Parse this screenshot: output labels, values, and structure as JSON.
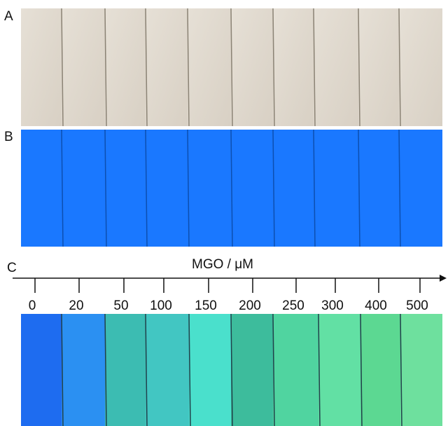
{
  "panels": {
    "a": "A",
    "b": "B",
    "c": "C"
  },
  "axis": {
    "title": "MGO / μM",
    "ticks": [
      0,
      20,
      50,
      100,
      150,
      200,
      250,
      300,
      400,
      500
    ]
  }
}
